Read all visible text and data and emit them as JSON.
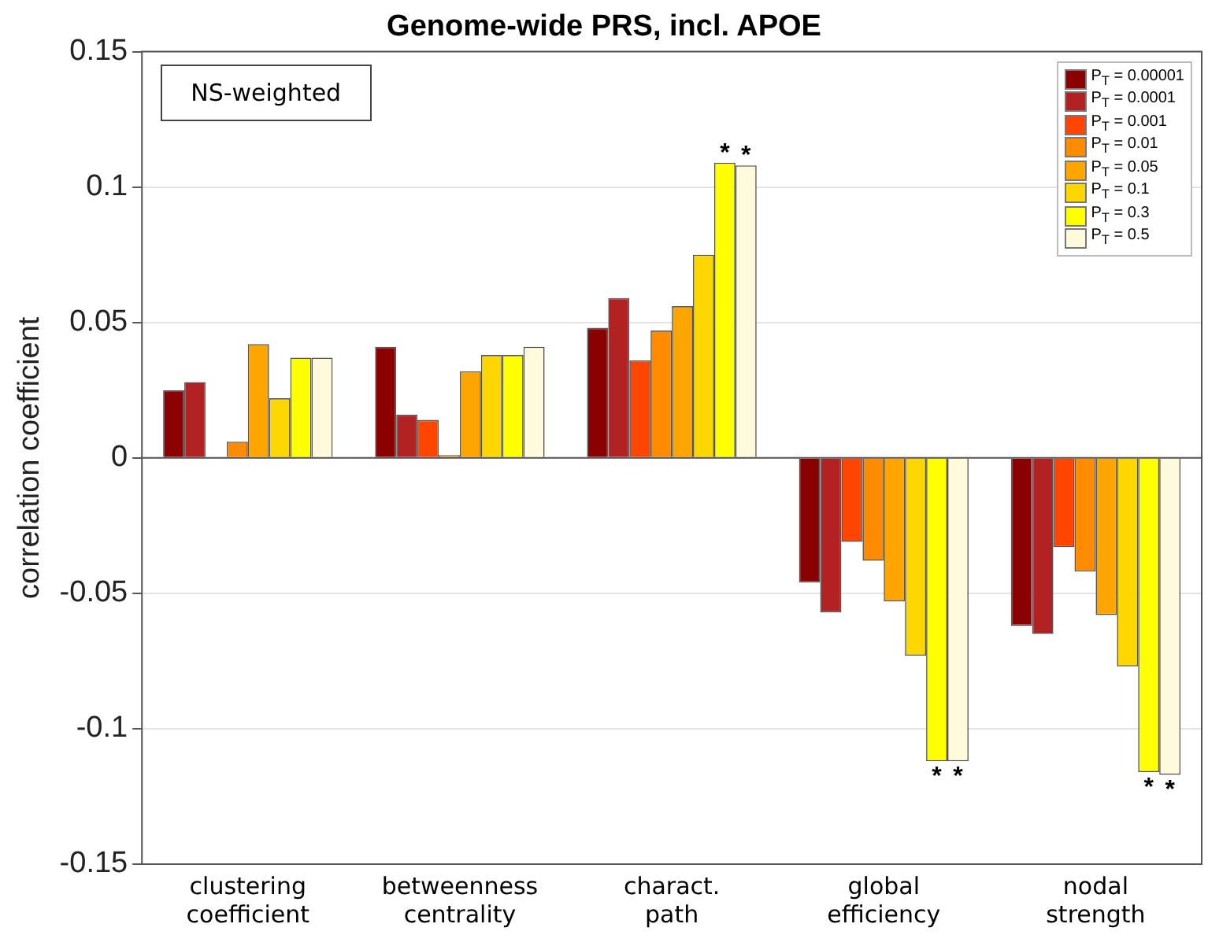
{
  "chart_data": {
    "type": "bar",
    "title": "Genome-wide PRS, incl. APOE",
    "ylabel": "correlation coefficient",
    "categories": [
      "clustering coefficient",
      "betweenness centrality",
      "charact. path",
      "global efficiency",
      "nodal strength"
    ],
    "series": [
      {
        "name": "P$_{T}$ = 0.00001",
        "color": "#8b0000",
        "values": [
          0.025,
          0.041,
          0.048,
          -0.046,
          -0.062
        ]
      },
      {
        "name": "P$_{T}$ = 0.0001",
        "color": "#b22222",
        "values": [
          0.028,
          0.016,
          0.059,
          -0.057,
          -0.065
        ]
      },
      {
        "name": "P$_{T}$ = 0.001",
        "color": "#ff4500",
        "values": [
          0,
          0.014,
          0.036,
          -0.031,
          -0.033
        ]
      },
      {
        "name": "P$_{T}$ = 0.01",
        "color": "#ff8c00",
        "values": [
          0.006,
          0.001,
          0.047,
          -0.038,
          -0.042
        ]
      },
      {
        "name": "P$_{T}$ = 0.05",
        "color": "#ffa500",
        "values": [
          0.042,
          0.032,
          0.056,
          -0.053,
          -0.058
        ]
      },
      {
        "name": "P$_{T}$ = 0.1",
        "color": "#ffd700",
        "values": [
          0.022,
          0.038,
          0.075,
          -0.073,
          -0.077
        ]
      },
      {
        "name": "P$_{T}$ = 0.3",
        "color": "#ffff00",
        "values": [
          0.037,
          0.038,
          0.109,
          -0.112,
          -0.116
        ]
      },
      {
        "name": "P$_{T}$ = 0.5",
        "color": "#fffadc",
        "values": [
          0.037,
          0.041,
          0.108,
          -0.112,
          -0.117
        ]
      }
    ],
    "ylim": [
      -0.15,
      0.15
    ],
    "yticks": [
      -0.15,
      -0.1,
      -0.05,
      0,
      0.05,
      0.1,
      0.15
    ],
    "grid": "y",
    "legend": "top right",
    "annotations": [
      "NS-weighted",
      "*",
      "*",
      "*",
      "*",
      "*",
      "*"
    ]
  }
}
